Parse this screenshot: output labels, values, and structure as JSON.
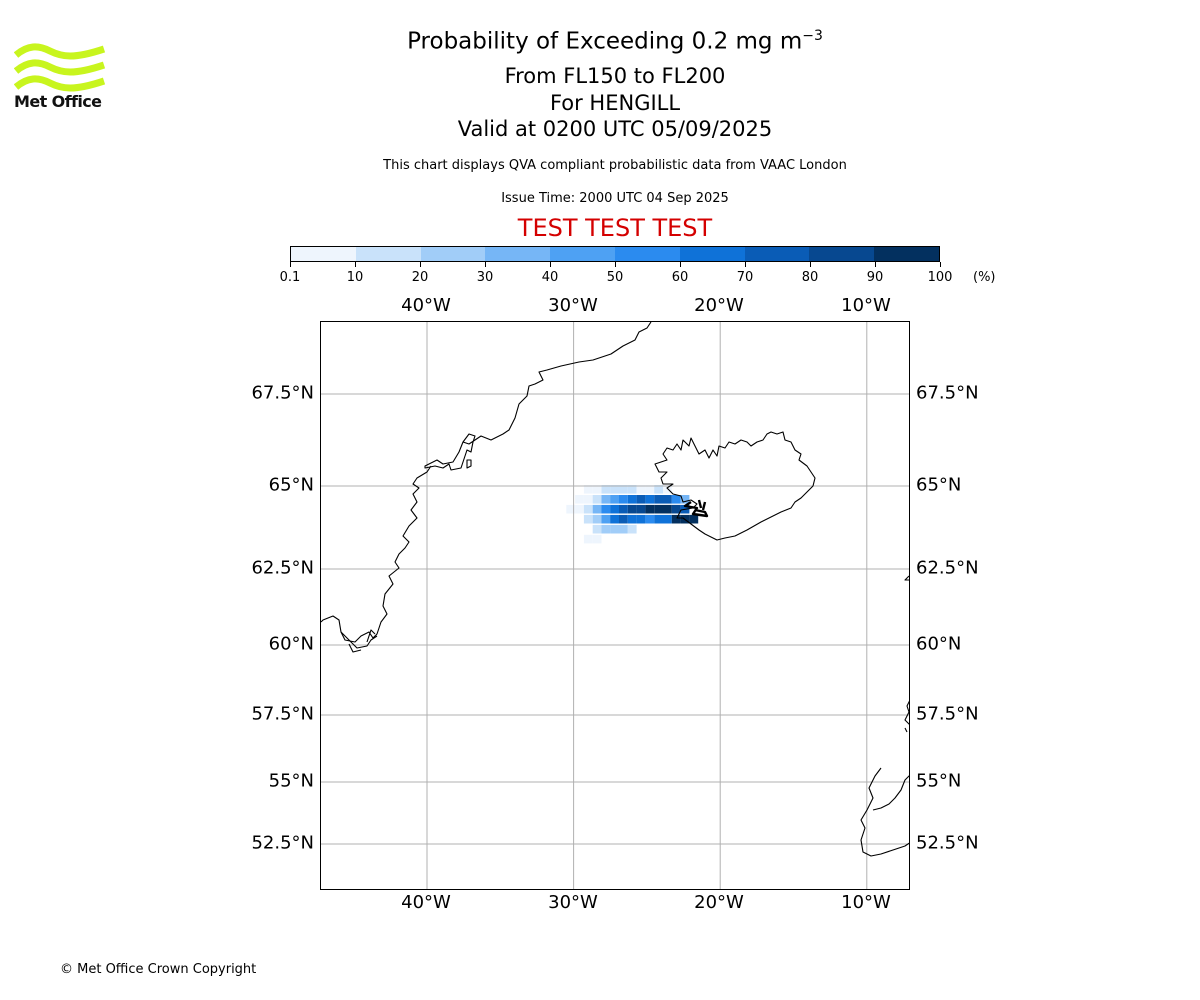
{
  "logo": {
    "text": "Met Office",
    "icon": "met-office-waves-icon",
    "color": "#c8f51e"
  },
  "header": {
    "title": "Probability of Exceeding 0.2 mg m",
    "title_superscript": "−3",
    "levels": "From FL150 to FL200",
    "volcano": "For HENGILL",
    "valid": "Valid at 0200 UTC 05/09/2025",
    "description": "This chart displays QVA compliant probabilistic data from VAAC London",
    "issue_time": "Issue Time: 2000 UTC 04 Sep 2025",
    "test_banner": "TEST TEST TEST",
    "test_color": "#d40000"
  },
  "colorbar": {
    "ticks": [
      "0.1",
      "10",
      "20",
      "30",
      "40",
      "50",
      "60",
      "70",
      "80",
      "90",
      "100"
    ],
    "unit": "(%)",
    "colors": [
      "#eef5fd",
      "#c9e2fa",
      "#a1cdf8",
      "#76b6f6",
      "#4ea1f3",
      "#2b8bef",
      "#0f72d8",
      "#0a5cb6",
      "#074890",
      "#03305f"
    ]
  },
  "map": {
    "lon_labels": [
      "40°W",
      "30°W",
      "20°W",
      "10°W"
    ],
    "lat_labels": [
      "67.5°N",
      "65°N",
      "62.5°N",
      "60°N",
      "57.5°N",
      "55°N",
      "52.5°N"
    ],
    "gridline_color": "#b0b0b0",
    "probability_cells": [
      {
        "lon": -29.0,
        "lat": 64.9,
        "level": 0
      },
      {
        "lon": -28.4,
        "lat": 64.9,
        "level": 0
      },
      {
        "lon": -27.8,
        "lat": 64.9,
        "level": 1
      },
      {
        "lon": -27.2,
        "lat": 64.9,
        "level": 1
      },
      {
        "lon": -26.6,
        "lat": 64.9,
        "level": 1
      },
      {
        "lon": -26.0,
        "lat": 64.9,
        "level": 1
      },
      {
        "lon": -25.4,
        "lat": 64.9,
        "level": 0
      },
      {
        "lon": -24.8,
        "lat": 64.9,
        "level": 0
      },
      {
        "lon": -24.2,
        "lat": 64.9,
        "level": 1
      },
      {
        "lon": -23.6,
        "lat": 64.9,
        "level": 0
      },
      {
        "lon": -29.6,
        "lat": 64.6,
        "level": 0
      },
      {
        "lon": -29.0,
        "lat": 64.6,
        "level": 0
      },
      {
        "lon": -28.4,
        "lat": 64.6,
        "level": 1
      },
      {
        "lon": -27.8,
        "lat": 64.6,
        "level": 3
      },
      {
        "lon": -27.2,
        "lat": 64.6,
        "level": 4
      },
      {
        "lon": -26.6,
        "lat": 64.6,
        "level": 5
      },
      {
        "lon": -26.0,
        "lat": 64.6,
        "level": 6
      },
      {
        "lon": -25.4,
        "lat": 64.6,
        "level": 7
      },
      {
        "lon": -24.8,
        "lat": 64.6,
        "level": 6
      },
      {
        "lon": -24.2,
        "lat": 64.6,
        "level": 7
      },
      {
        "lon": -23.6,
        "lat": 64.6,
        "level": 7
      },
      {
        "lon": -23.0,
        "lat": 64.6,
        "level": 5
      },
      {
        "lon": -22.4,
        "lat": 64.6,
        "level": 3
      },
      {
        "lon": -30.2,
        "lat": 64.3,
        "level": 0
      },
      {
        "lon": -29.6,
        "lat": 64.3,
        "level": 0
      },
      {
        "lon": -29.0,
        "lat": 64.3,
        "level": 1
      },
      {
        "lon": -28.4,
        "lat": 64.3,
        "level": 3
      },
      {
        "lon": -27.8,
        "lat": 64.3,
        "level": 5
      },
      {
        "lon": -27.2,
        "lat": 64.3,
        "level": 6
      },
      {
        "lon": -26.6,
        "lat": 64.3,
        "level": 7
      },
      {
        "lon": -26.0,
        "lat": 64.3,
        "level": 8
      },
      {
        "lon": -25.4,
        "lat": 64.3,
        "level": 8
      },
      {
        "lon": -24.8,
        "lat": 64.3,
        "level": 9
      },
      {
        "lon": -24.2,
        "lat": 64.3,
        "level": 9
      },
      {
        "lon": -23.6,
        "lat": 64.3,
        "level": 9
      },
      {
        "lon": -23.0,
        "lat": 64.3,
        "level": 8
      },
      {
        "lon": -22.4,
        "lat": 64.3,
        "level": 7
      },
      {
        "lon": -29.0,
        "lat": 64.0,
        "level": 1
      },
      {
        "lon": -28.4,
        "lat": 64.0,
        "level": 2
      },
      {
        "lon": -27.8,
        "lat": 64.0,
        "level": 4
      },
      {
        "lon": -27.2,
        "lat": 64.0,
        "level": 6
      },
      {
        "lon": -26.6,
        "lat": 64.0,
        "level": 7
      },
      {
        "lon": -26.0,
        "lat": 64.0,
        "level": 6
      },
      {
        "lon": -25.4,
        "lat": 64.0,
        "level": 6
      },
      {
        "lon": -24.8,
        "lat": 64.0,
        "level": 5
      },
      {
        "lon": -24.2,
        "lat": 64.0,
        "level": 6
      },
      {
        "lon": -23.6,
        "lat": 64.0,
        "level": 6
      },
      {
        "lon": -23.0,
        "lat": 64.0,
        "level": 9
      },
      {
        "lon": -22.4,
        "lat": 64.0,
        "level": 9
      },
      {
        "lon": -21.8,
        "lat": 64.0,
        "level": 9
      },
      {
        "lon": -28.4,
        "lat": 63.7,
        "level": 1
      },
      {
        "lon": -27.8,
        "lat": 63.7,
        "level": 2
      },
      {
        "lon": -27.2,
        "lat": 63.7,
        "level": 2
      },
      {
        "lon": -26.6,
        "lat": 63.7,
        "level": 2
      },
      {
        "lon": -26.0,
        "lat": 63.7,
        "level": 1
      },
      {
        "lon": -29.0,
        "lat": 63.4,
        "level": 0
      },
      {
        "lon": -28.4,
        "lat": 63.4,
        "level": 0
      }
    ]
  },
  "footer": {
    "copyright": "© Met Office Crown Copyright"
  }
}
